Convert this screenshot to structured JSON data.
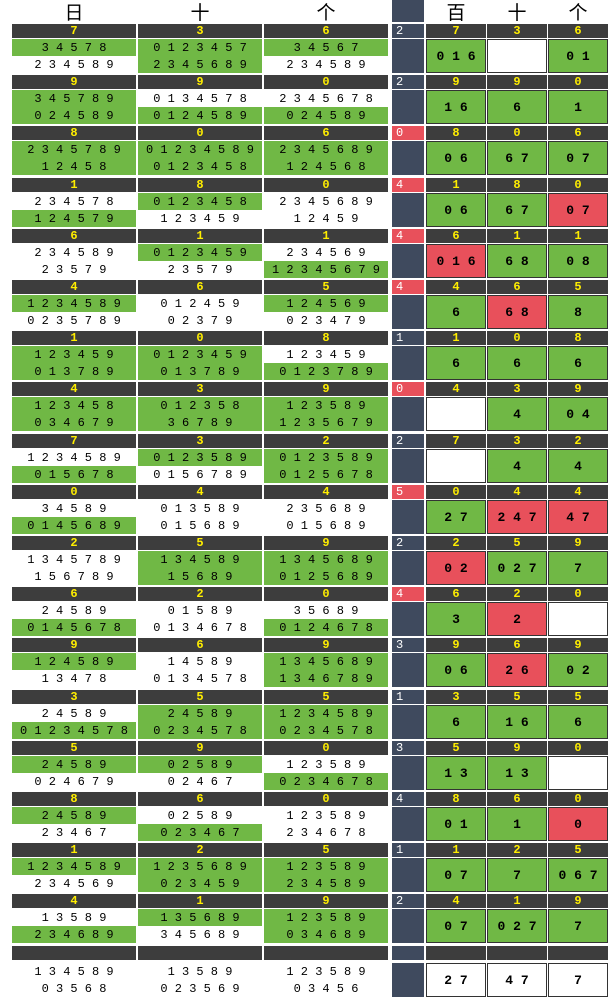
{
  "header": {
    "bai": "百",
    "shi": "十",
    "ge": "个",
    "left_bai": "日",
    "left_shi": "十",
    "left_ge": "个"
  },
  "colors": {
    "green": "#70b845",
    "white": "#ffffff",
    "red": "#e8505b",
    "dark": "#3d3d3d",
    "blue": "#3f4a5e",
    "yellow": "#ffee00"
  },
  "rows": [
    {
      "digits": [
        "7",
        "3",
        "6"
      ],
      "num": "2",
      "red": false,
      "opts": [
        [
          "34578",
          "g"
        ],
        [
          "01234 57",
          "g"
        ],
        [
          "34567",
          "g"
        ]
      ],
      "opts2": [
        [
          "234589",
          "w"
        ],
        [
          "2345689",
          "g"
        ],
        [
          "234589",
          "w"
        ]
      ],
      "res": [
        "7",
        "3",
        "6"
      ],
      "big": [
        [
          "016",
          "g"
        ],
        [
          "",
          "w"
        ],
        [
          "01",
          "g"
        ]
      ]
    },
    {
      "digits": [
        "9",
        "9",
        "0"
      ],
      "num": "2",
      "red": false,
      "opts": [
        [
          "345789",
          "g"
        ],
        [
          "0134578",
          "w"
        ],
        [
          "2345678",
          "w"
        ]
      ],
      "opts2": [
        [
          "024589",
          "g"
        ],
        [
          "0124589",
          "g"
        ],
        [
          "024589",
          "g"
        ]
      ],
      "res": [
        "9",
        "9",
        "0"
      ],
      "big": [
        [
          "16",
          "g"
        ],
        [
          "6",
          "g"
        ],
        [
          "1",
          "g"
        ]
      ]
    },
    {
      "digits": [
        "8",
        "0",
        "6"
      ],
      "num": "0",
      "red": true,
      "opts": [
        [
          "234 5789",
          "g"
        ],
        [
          "0123 45 89",
          "g"
        ],
        [
          "2345689",
          "g"
        ]
      ],
      "opts2": [
        [
          "12458",
          "g"
        ],
        [
          "0123458",
          "g"
        ],
        [
          "124568",
          "g"
        ]
      ],
      "res": [
        "8",
        "0",
        "6"
      ],
      "big": [
        [
          "06",
          "g"
        ],
        [
          "67",
          "g"
        ],
        [
          "07",
          "g"
        ]
      ]
    },
    {
      "digits": [
        "1",
        "8",
        "0"
      ],
      "num": "4",
      "red": true,
      "opts": [
        [
          "234578",
          "w"
        ],
        [
          "0123458",
          "g"
        ],
        [
          "2345689",
          "w"
        ]
      ],
      "opts2": [
        [
          "124579",
          "g"
        ],
        [
          "123459",
          "w"
        ],
        [
          "12459",
          "w"
        ]
      ],
      "res": [
        "1",
        "8",
        "0"
      ],
      "big": [
        [
          "06",
          "g"
        ],
        [
          "67",
          "g"
        ],
        [
          "07",
          "r"
        ]
      ]
    },
    {
      "digits": [
        "6",
        "1",
        "1"
      ],
      "num": "4",
      "red": true,
      "opts": [
        [
          "234589",
          "w"
        ],
        [
          "0123459",
          "g"
        ],
        [
          "234569",
          "w"
        ]
      ],
      "opts2": [
        [
          "23579",
          "w"
        ],
        [
          "23579",
          "w"
        ],
        [
          "1234 5679",
          "g"
        ]
      ],
      "res": [
        "6",
        "1",
        "1"
      ],
      "big": [
        [
          "016",
          "r"
        ],
        [
          "68",
          "g"
        ],
        [
          "08",
          "g"
        ]
      ]
    },
    {
      "digits": [
        "4",
        "6",
        "5"
      ],
      "num": "4",
      "red": true,
      "opts": [
        [
          "1234589",
          "g"
        ],
        [
          "012459",
          "w"
        ],
        [
          "124569",
          "g"
        ]
      ],
      "opts2": [
        [
          "0235789",
          "w"
        ],
        [
          "02379",
          "w"
        ],
        [
          "023479",
          "w"
        ]
      ],
      "res": [
        "4",
        "6",
        "5"
      ],
      "big": [
        [
          "6",
          "g"
        ],
        [
          "68",
          "r"
        ],
        [
          "8",
          "g"
        ]
      ]
    },
    {
      "digits": [
        "1",
        "0",
        "8"
      ],
      "num": "1",
      "red": false,
      "opts": [
        [
          "123459",
          "g"
        ],
        [
          "0123459",
          "g"
        ],
        [
          "123459",
          "w"
        ]
      ],
      "opts2": [
        [
          "013789",
          "g"
        ],
        [
          "013789",
          "g"
        ],
        [
          "0123789",
          "g"
        ]
      ],
      "res": [
        "1",
        "0",
        "8"
      ],
      "big": [
        [
          "6",
          "g"
        ],
        [
          "6",
          "g"
        ],
        [
          "6",
          "g"
        ]
      ]
    },
    {
      "digits": [
        "4",
        "3",
        "9"
      ],
      "num": "0",
      "red": true,
      "opts": [
        [
          "123458",
          "g"
        ],
        [
          "012358",
          "g"
        ],
        [
          "123589",
          "g"
        ]
      ],
      "opts2": [
        [
          "034679",
          "g"
        ],
        [
          "36789",
          "g"
        ],
        [
          "1235679",
          "g"
        ]
      ],
      "res": [
        "4",
        "3",
        "9"
      ],
      "big": [
        [
          "",
          "w"
        ],
        [
          "4",
          "g"
        ],
        [
          "04",
          "g"
        ]
      ]
    },
    {
      "digits": [
        "7",
        "3",
        "2"
      ],
      "num": "2",
      "red": false,
      "opts": [
        [
          "1234589",
          "w"
        ],
        [
          "0123589",
          "g"
        ],
        [
          "0123589",
          "g"
        ]
      ],
      "opts2": [
        [
          "015678",
          "g"
        ],
        [
          "0156789",
          "w"
        ],
        [
          "0125678",
          "g"
        ]
      ],
      "res": [
        "7",
        "3",
        "2"
      ],
      "big": [
        [
          "",
          "w"
        ],
        [
          "4",
          "g"
        ],
        [
          "4",
          "g"
        ]
      ]
    },
    {
      "digits": [
        "0",
        "4",
        "4"
      ],
      "num": "5",
      "red": true,
      "opts": [
        [
          "34589",
          "w"
        ],
        [
          "013589",
          "w"
        ],
        [
          "235689",
          "w"
        ]
      ],
      "opts2": [
        [
          "0145689",
          "g"
        ],
        [
          "015689",
          "w"
        ],
        [
          "015689",
          "w"
        ]
      ],
      "res": [
        "0",
        "4",
        "4"
      ],
      "big": [
        [
          "27",
          "g"
        ],
        [
          "247",
          "r"
        ],
        [
          "47",
          "r"
        ]
      ]
    },
    {
      "digits": [
        "2",
        "5",
        "9"
      ],
      "num": "2",
      "red": false,
      "opts": [
        [
          "1345789",
          "w"
        ],
        [
          "134589",
          "g"
        ],
        [
          "1345689",
          "g"
        ]
      ],
      "opts2": [
        [
          "156789",
          "w"
        ],
        [
          "15689",
          "g"
        ],
        [
          "0125689",
          "g"
        ]
      ],
      "res": [
        "2",
        "5",
        "9"
      ],
      "big": [
        [
          "02",
          "r"
        ],
        [
          "027",
          "g"
        ],
        [
          "7",
          "g"
        ]
      ]
    },
    {
      "digits": [
        "6",
        "2",
        "0"
      ],
      "num": "4",
      "red": true,
      "opts": [
        [
          "24589",
          "w"
        ],
        [
          "01589",
          "w"
        ],
        [
          "35689",
          "w"
        ]
      ],
      "opts2": [
        [
          "0145678",
          "g"
        ],
        [
          "0134678",
          "w"
        ],
        [
          "0124678",
          "g"
        ]
      ],
      "res": [
        "6",
        "2",
        "0"
      ],
      "big": [
        [
          "3",
          "g"
        ],
        [
          "2",
          "r"
        ],
        [
          "",
          "w"
        ]
      ]
    },
    {
      "digits": [
        "9",
        "6",
        "9"
      ],
      "num": "3",
      "red": false,
      "opts": [
        [
          "124589",
          "g"
        ],
        [
          "14589",
          "w"
        ],
        [
          "1345689",
          "g"
        ]
      ],
      "opts2": [
        [
          "13478",
          "w"
        ],
        [
          "0134578",
          "w"
        ],
        [
          "1346789",
          "g"
        ]
      ],
      "res": [
        "9",
        "6",
        "9"
      ],
      "big": [
        [
          "06",
          "g"
        ],
        [
          "26",
          "r"
        ],
        [
          "02",
          "g"
        ]
      ]
    },
    {
      "digits": [
        "3",
        "5",
        "5"
      ],
      "num": "1",
      "red": false,
      "opts": [
        [
          "24589",
          "w"
        ],
        [
          "24589",
          "g"
        ],
        [
          "1234589",
          "g"
        ]
      ],
      "opts2": [
        [
          "01234578",
          "g"
        ],
        [
          "0234578",
          "g"
        ],
        [
          "0234578",
          "g"
        ]
      ],
      "res": [
        "3",
        "5",
        "5"
      ],
      "big": [
        [
          "6",
          "g"
        ],
        [
          "16",
          "g"
        ],
        [
          "6",
          "g"
        ]
      ]
    },
    {
      "digits": [
        "5",
        "9",
        "0"
      ],
      "num": "3",
      "red": false,
      "opts": [
        [
          "24589",
          "g"
        ],
        [
          "02589",
          "g"
        ],
        [
          "123589",
          "w"
        ]
      ],
      "opts2": [
        [
          "024679",
          "w"
        ],
        [
          "02467",
          "w"
        ],
        [
          "0234678",
          "g"
        ]
      ],
      "res": [
        "5",
        "9",
        "0"
      ],
      "big": [
        [
          "13",
          "g"
        ],
        [
          "13",
          "g"
        ],
        [
          "",
          "w"
        ]
      ]
    },
    {
      "digits": [
        "8",
        "6",
        "0"
      ],
      "num": "4",
      "red": false,
      "opts": [
        [
          "24589",
          "g"
        ],
        [
          "02589",
          "w"
        ],
        [
          "123589",
          "w"
        ]
      ],
      "opts2": [
        [
          "23467",
          "w"
        ],
        [
          "023467",
          "g"
        ],
        [
          "234678",
          "w"
        ]
      ],
      "res": [
        "8",
        "6",
        "0"
      ],
      "big": [
        [
          "01",
          "g"
        ],
        [
          "1",
          "g"
        ],
        [
          "0",
          "r"
        ]
      ]
    },
    {
      "digits": [
        "1",
        "2",
        "5"
      ],
      "num": "1",
      "red": false,
      "opts": [
        [
          "1234589",
          "g"
        ],
        [
          "1235689",
          "g"
        ],
        [
          "123589",
          "g"
        ]
      ],
      "opts2": [
        [
          "234569",
          "w"
        ],
        [
          "023459",
          "g"
        ],
        [
          "234589",
          "g"
        ]
      ],
      "res": [
        "1",
        "2",
        "5"
      ],
      "big": [
        [
          "07",
          "g"
        ],
        [
          "7",
          "g"
        ],
        [
          "067",
          "g"
        ]
      ]
    },
    {
      "digits": [
        "4",
        "1",
        "9"
      ],
      "num": "2",
      "red": false,
      "opts": [
        [
          "13589",
          "w"
        ],
        [
          "135689",
          "g"
        ],
        [
          "123589",
          "g"
        ]
      ],
      "opts2": [
        [
          "234689",
          "g"
        ],
        [
          "345689",
          "w"
        ],
        [
          "034689",
          "g"
        ]
      ],
      "res": [
        "4",
        "1",
        "9"
      ],
      "big": [
        [
          "07",
          "g"
        ],
        [
          "027",
          "g"
        ],
        [
          "7",
          "g"
        ]
      ]
    }
  ],
  "last": {
    "opts": [
      [
        "134589",
        "w"
      ],
      [
        "13589",
        "w"
      ],
      [
        "123589",
        "w"
      ]
    ],
    "opts2": [
      [
        "03568",
        "w"
      ],
      [
        "023569",
        "w"
      ],
      [
        "03456",
        "w"
      ]
    ],
    "big": [
      [
        "27",
        "w"
      ],
      [
        "47",
        "w"
      ],
      [
        "7",
        "w"
      ]
    ]
  }
}
